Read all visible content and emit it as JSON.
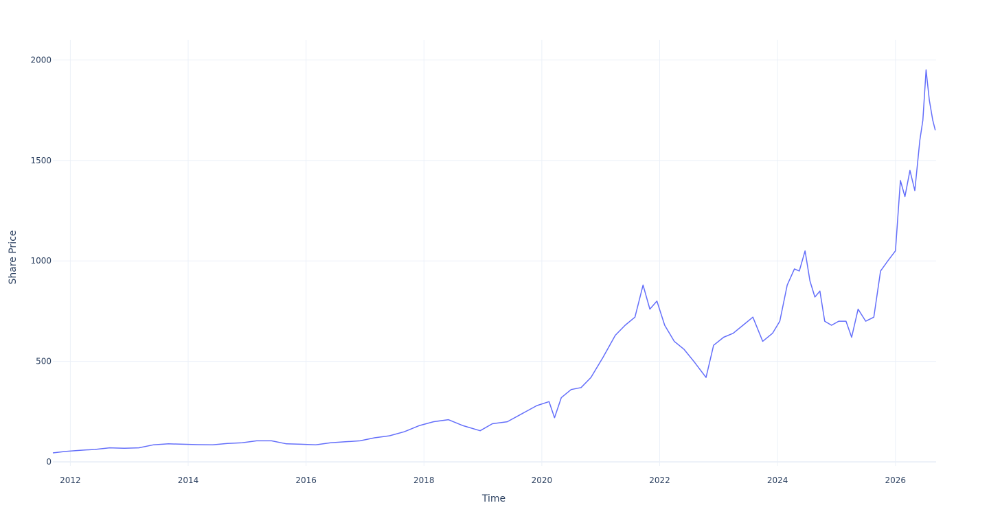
{
  "chart_data": {
    "type": "line",
    "xlabel": "Time",
    "ylabel": "Share Price",
    "xlim": [
      "2011-09-15",
      "2026-09-10"
    ],
    "ylim": [
      -20,
      2100
    ],
    "x_ticks": [
      "2012",
      "2014",
      "2016",
      "2018",
      "2020",
      "2022",
      "2024",
      "2026"
    ],
    "y_ticks": [
      0,
      500,
      1000,
      1500,
      2000
    ],
    "grid": true,
    "legend": "none",
    "line_color": "#636efa",
    "series": [
      {
        "x": [
          "2011-09-15",
          "2011-12-01",
          "2012-03-01",
          "2012-06-01",
          "2012-09-01",
          "2012-12-01",
          "2013-03-01",
          "2013-06-01",
          "2013-09-01",
          "2013-12-01",
          "2014-03-01",
          "2014-06-01",
          "2014-09-01",
          "2014-12-01",
          "2015-03-01",
          "2015-06-01",
          "2015-09-01",
          "2015-12-01",
          "2016-03-01",
          "2016-06-01",
          "2016-09-01",
          "2016-12-01",
          "2017-03-01",
          "2017-06-01",
          "2017-09-01",
          "2017-12-01",
          "2018-03-01",
          "2018-06-01",
          "2018-09-01",
          "2018-12-15",
          "2019-03-01",
          "2019-06-01",
          "2019-09-01",
          "2019-12-01",
          "2020-02-15",
          "2020-03-20",
          "2020-05-01",
          "2020-07-01",
          "2020-09-01",
          "2020-11-01",
          "2021-01-15",
          "2021-04-01",
          "2021-06-01",
          "2021-08-01",
          "2021-09-20",
          "2021-11-01",
          "2021-12-15",
          "2022-02-01",
          "2022-04-01",
          "2022-06-01",
          "2022-08-01",
          "2022-10-15",
          "2022-12-01",
          "2023-02-01",
          "2023-04-01",
          "2023-06-01",
          "2023-08-01",
          "2023-10-01",
          "2023-12-01",
          "2024-01-15",
          "2024-03-01",
          "2024-04-15",
          "2024-05-15",
          "2024-06-20",
          "2024-07-20",
          "2024-08-20",
          "2024-09-20",
          "2024-10-20",
          "2024-12-01",
          "2025-01-15",
          "2025-03-01",
          "2025-04-05",
          "2025-05-15",
          "2025-07-01",
          "2025-08-20",
          "2025-10-01",
          "2025-11-15",
          "2026-01-01",
          "2026-02-01",
          "2026-03-01",
          "2026-04-01",
          "2026-05-01",
          "2026-06-01",
          "2026-06-20",
          "2026-07-10",
          "2026-07-30",
          "2026-08-20",
          "2026-09-05"
        ],
        "y": [
          45,
          52,
          58,
          62,
          70,
          68,
          70,
          85,
          90,
          88,
          86,
          85,
          92,
          95,
          105,
          105,
          90,
          88,
          85,
          95,
          100,
          105,
          120,
          130,
          150,
          180,
          200,
          210,
          180,
          155,
          190,
          200,
          240,
          280,
          300,
          220,
          320,
          360,
          370,
          420,
          520,
          630,
          680,
          720,
          880,
          760,
          800,
          680,
          600,
          560,
          500,
          420,
          580,
          620,
          640,
          680,
          720,
          600,
          640,
          700,
          880,
          960,
          950,
          1050,
          900,
          820,
          850,
          700,
          680,
          700,
          700,
          620,
          760,
          700,
          720,
          950,
          1000,
          1050,
          1400,
          1320,
          1450,
          1350,
          1600,
          1700,
          1950,
          1800,
          1700,
          1650
        ]
      }
    ]
  }
}
